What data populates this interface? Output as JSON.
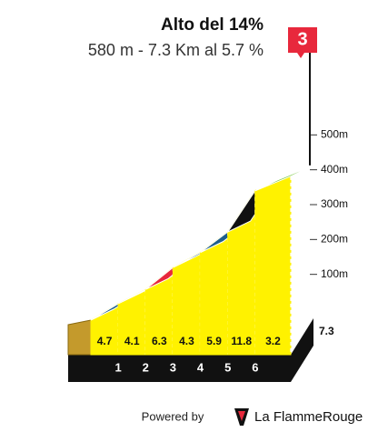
{
  "chart_data": {
    "type": "climb-profile",
    "title": "Alto del 14%",
    "subtitle": "580 m - 7.3 Km al 5.7 %",
    "category": "3",
    "x": [
      1,
      2,
      3,
      4,
      5,
      6,
      7.3
    ],
    "values": [
      4.7,
      4.1,
      6.3,
      4.3,
      5.9,
      11.8,
      3.2
    ],
    "colors": [
      "#1f5f8b",
      "#1f5f8b",
      "#e8283c",
      "#1f5f8b",
      "#1f5f8b",
      "#111111",
      "#7ac943"
    ],
    "xlim": [
      0,
      7.3
    ],
    "ylim": [
      0,
      600
    ],
    "yticks": [
      {
        "value": 100,
        "label": "100m"
      },
      {
        "value": 200,
        "label": "200m"
      },
      {
        "value": 300,
        "label": "300m"
      },
      {
        "value": 400,
        "label": "400m"
      },
      {
        "value": 500,
        "label": "500m"
      }
    ]
  },
  "footer": {
    "powered_by": "Powered by",
    "brand": "La FlammeRouge"
  }
}
